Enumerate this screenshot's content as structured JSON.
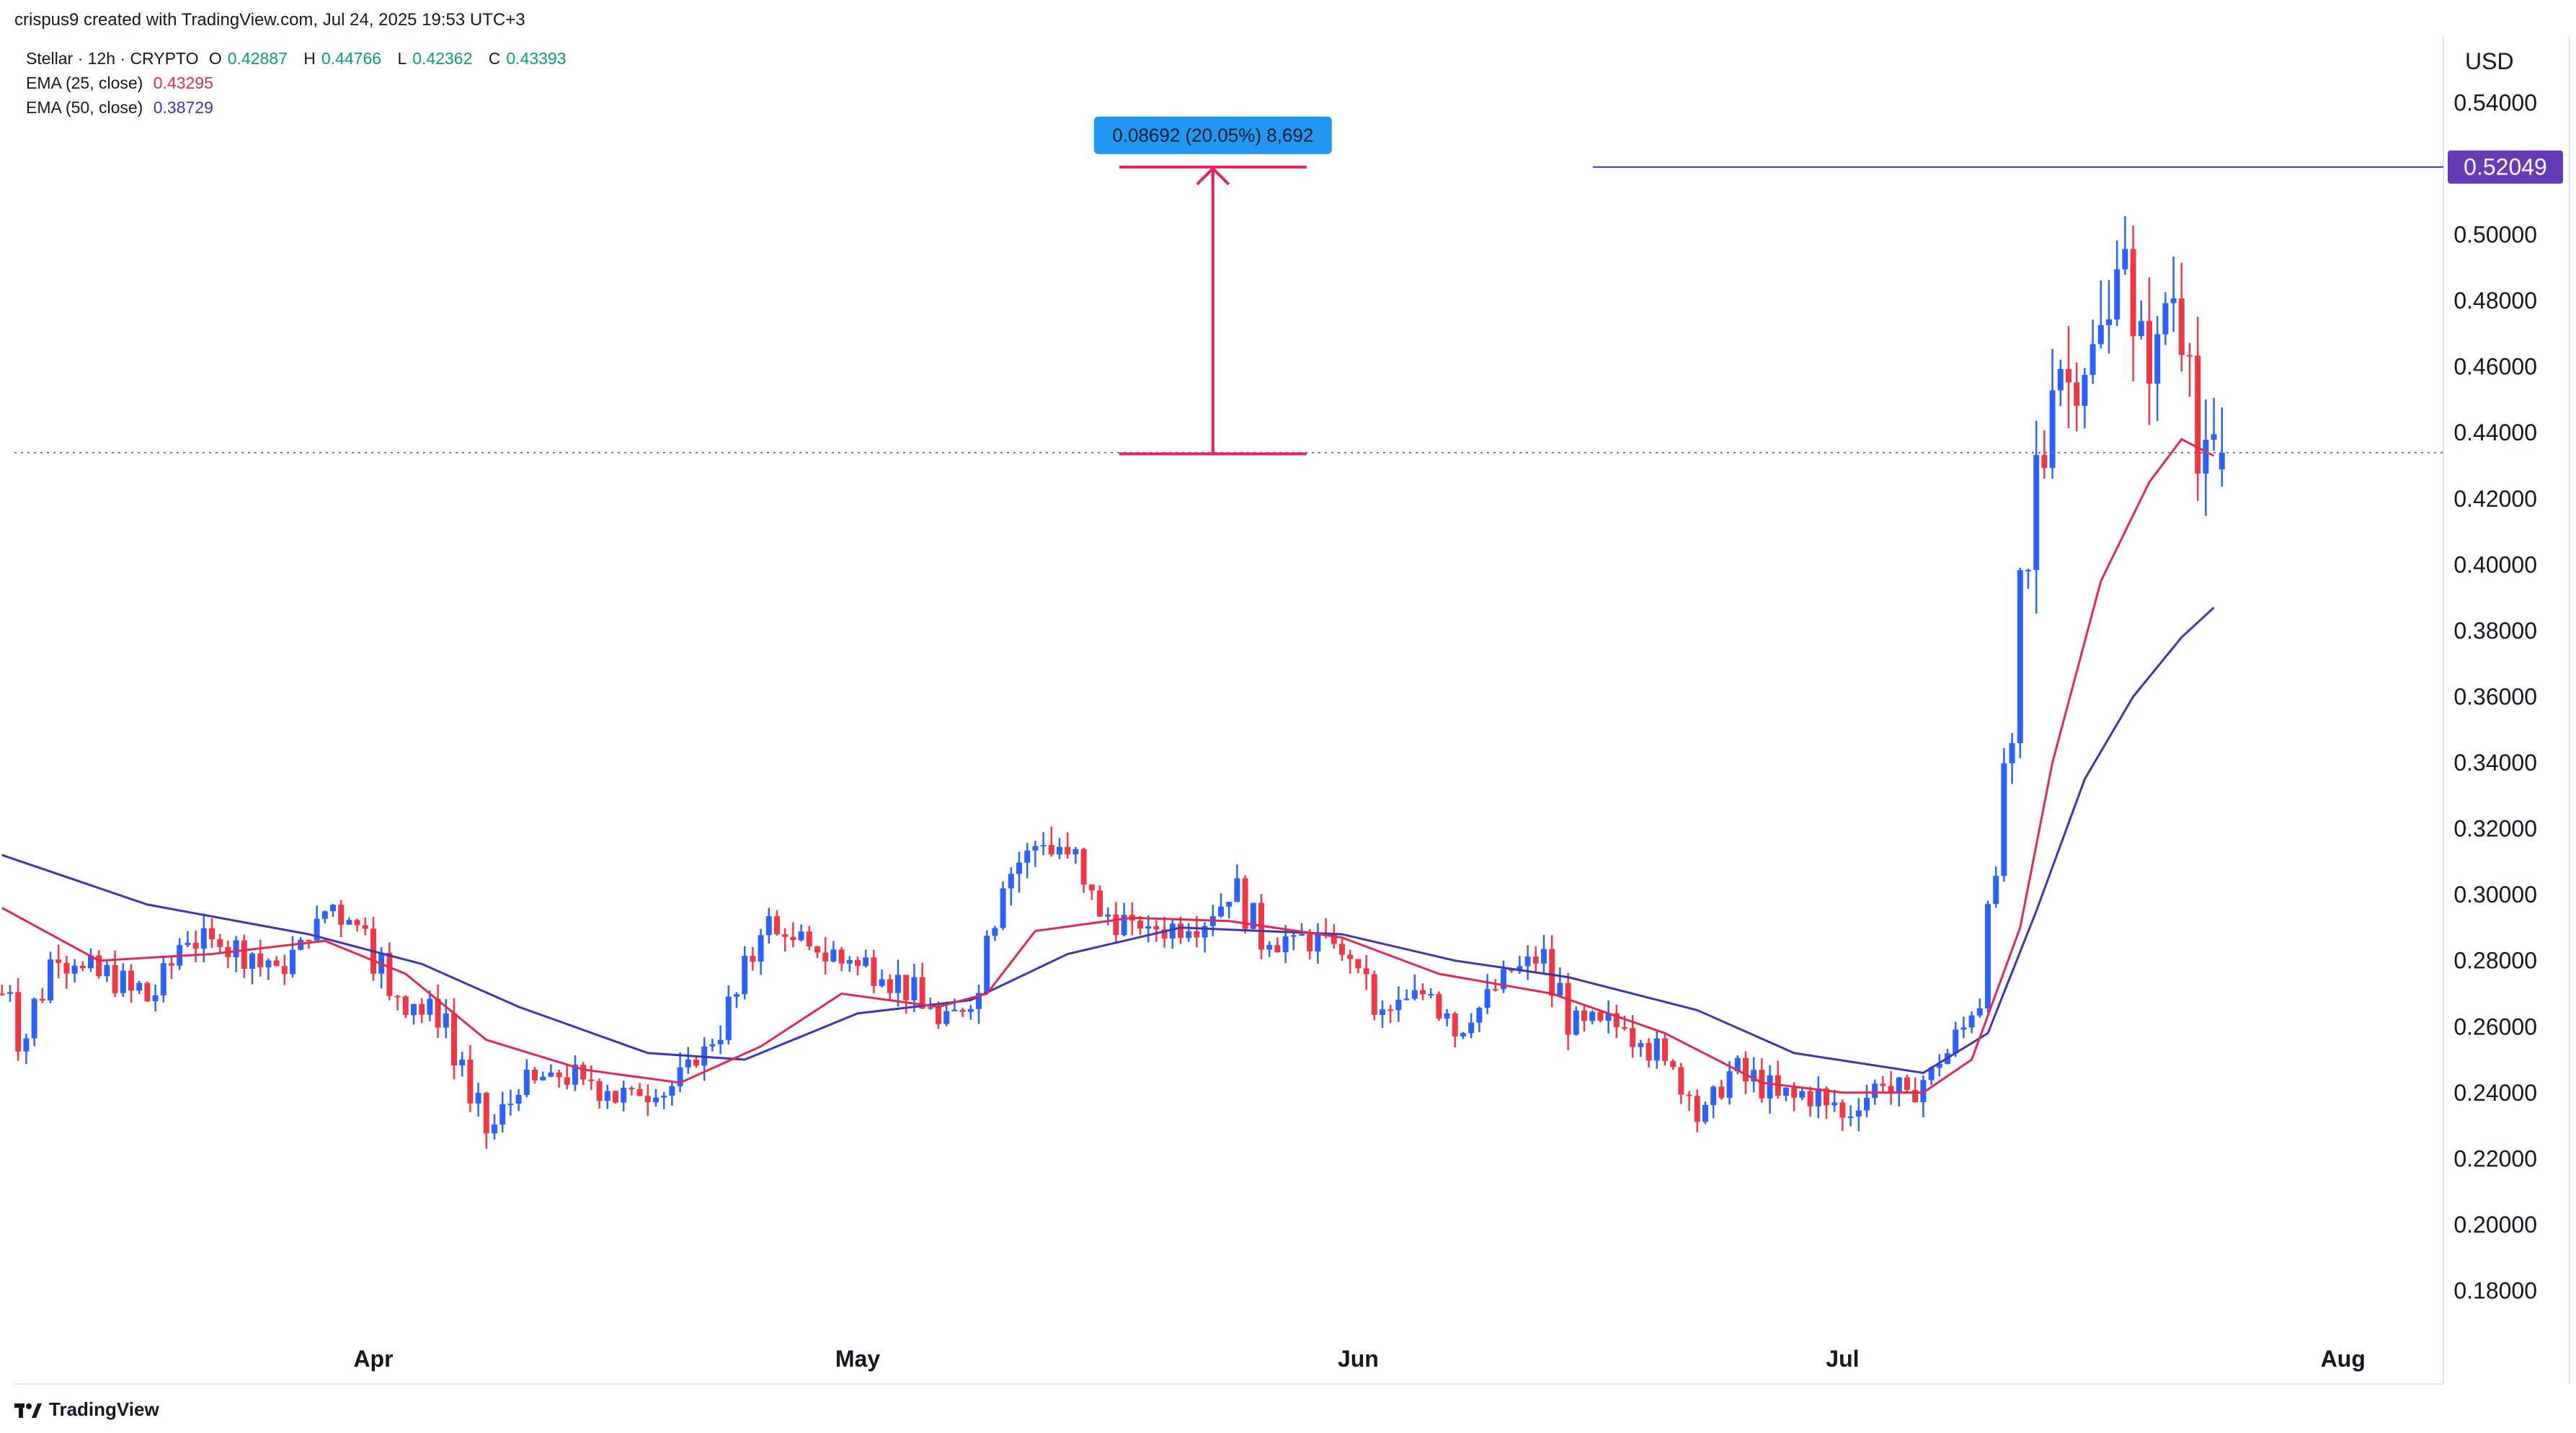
{
  "header": {
    "credit": "crispus9 created with TradingView.com, Jul 24, 2025 19:53 UTC+3"
  },
  "legend": {
    "symbol": "Stellar · 12h · CRYPTO",
    "open_label": "O",
    "open": "0.42887",
    "high_label": "H",
    "high": "0.44766",
    "low_label": "L",
    "low": "0.42362",
    "close_label": "C",
    "close": "0.43393",
    "ema25_label": "EMA (25, close)",
    "ema25": "0.43295",
    "ema50_label": "EMA (50, close)",
    "ema50": "0.38729"
  },
  "measure": {
    "label": "0.08692 (20.05%) 8,692"
  },
  "price_tag": "0.52049",
  "currency": "USD",
  "brand": "TradingView",
  "colors": {
    "up": "#2962ff",
    "down": "#f23645",
    "ema25": "#e0294f",
    "ema50": "#3d35b5",
    "measure": "#e91e63",
    "tag": "#673ab7",
    "label_bg": "#2196f3"
  },
  "chart_data": {
    "type": "candlestick",
    "title": "Stellar · 12h · CRYPTO",
    "ylabel": "USD",
    "ylim": [
      0.17,
      0.55
    ],
    "y_ticks": [
      "0.54000",
      "0.52000",
      "0.50000",
      "0.48000",
      "0.46000",
      "0.44000",
      "0.42000",
      "0.40000",
      "0.38000",
      "0.36000",
      "0.34000",
      "0.32000",
      "0.30000",
      "0.28000",
      "0.26000",
      "0.24000",
      "0.22000",
      "0.20000",
      "0.18000"
    ],
    "x_ticks": [
      {
        "label": "Apr",
        "date": "2025-04-01"
      },
      {
        "label": "May",
        "date": "2025-05-01"
      },
      {
        "label": "Jun",
        "date": "2025-06-01"
      },
      {
        "label": "Jul",
        "date": "2025-07-01"
      },
      {
        "label": "Aug",
        "date": "2025-08-01"
      }
    ],
    "close_path": [
      [
        "2025-03-09",
        0.27
      ],
      [
        "2025-03-10",
        0.255
      ],
      [
        "2025-03-12",
        0.28
      ],
      [
        "2025-03-15",
        0.275
      ],
      [
        "2025-03-18",
        0.268
      ],
      [
        "2025-03-20",
        0.285
      ],
      [
        "2025-03-22",
        0.285
      ],
      [
        "2025-03-26",
        0.276
      ],
      [
        "2025-03-29",
        0.295
      ],
      [
        "2025-03-31",
        0.29
      ],
      [
        "2025-04-02",
        0.268
      ],
      [
        "2025-04-05",
        0.262
      ],
      [
        "2025-04-07",
        0.235
      ],
      [
        "2025-04-08",
        0.228
      ],
      [
        "2025-04-10",
        0.242
      ],
      [
        "2025-04-13",
        0.244
      ],
      [
        "2025-04-16",
        0.238
      ],
      [
        "2025-04-19",
        0.24
      ],
      [
        "2025-04-22",
        0.256
      ],
      [
        "2025-04-25",
        0.29
      ],
      [
        "2025-04-28",
        0.282
      ],
      [
        "2025-05-01",
        0.278
      ],
      [
        "2025-05-04",
        0.27
      ],
      [
        "2025-05-06",
        0.26
      ],
      [
        "2025-05-08",
        0.268
      ],
      [
        "2025-05-09",
        0.29
      ],
      [
        "2025-05-10",
        0.305
      ],
      [
        "2025-05-12",
        0.315
      ],
      [
        "2025-05-14",
        0.31
      ],
      [
        "2025-05-16",
        0.292
      ],
      [
        "2025-05-19",
        0.288
      ],
      [
        "2025-05-22",
        0.29
      ],
      [
        "2025-05-24",
        0.3
      ],
      [
        "2025-05-26",
        0.285
      ],
      [
        "2025-05-30",
        0.285
      ],
      [
        "2025-06-01",
        0.275
      ],
      [
        "2025-06-02",
        0.262
      ],
      [
        "2025-06-05",
        0.27
      ],
      [
        "2025-06-07",
        0.258
      ],
      [
        "2025-06-10",
        0.275
      ],
      [
        "2025-06-12",
        0.28
      ],
      [
        "2025-06-14",
        0.26
      ],
      [
        "2025-06-17",
        0.26
      ],
      [
        "2025-06-20",
        0.248
      ],
      [
        "2025-06-22",
        0.232
      ],
      [
        "2025-06-24",
        0.246
      ],
      [
        "2025-06-27",
        0.238
      ],
      [
        "2025-06-29",
        0.238
      ],
      [
        "2025-07-01",
        0.232
      ],
      [
        "2025-07-03",
        0.242
      ],
      [
        "2025-07-05",
        0.238
      ],
      [
        "2025-07-07",
        0.25
      ],
      [
        "2025-07-09",
        0.265
      ],
      [
        "2025-07-10",
        0.3
      ],
      [
        "2025-07-11",
        0.34
      ],
      [
        "2025-07-12",
        0.395
      ],
      [
        "2025-07-13",
        0.43
      ],
      [
        "2025-07-14",
        0.46
      ],
      [
        "2025-07-15",
        0.455
      ],
      [
        "2025-07-16",
        0.462
      ],
      [
        "2025-07-17",
        0.47
      ],
      [
        "2025-07-18",
        0.498
      ],
      [
        "2025-07-19",
        0.465
      ],
      [
        "2025-07-20",
        0.462
      ],
      [
        "2025-07-21",
        0.48
      ],
      [
        "2025-07-22",
        0.47
      ],
      [
        "2025-07-23",
        0.428
      ],
      [
        "2025-07-24",
        0.434
      ]
    ],
    "ema25": [
      [
        "2025-03-09",
        0.296
      ],
      [
        "2025-03-15",
        0.28
      ],
      [
        "2025-03-22",
        0.282
      ],
      [
        "2025-03-29",
        0.286
      ],
      [
        "2025-04-03",
        0.276
      ],
      [
        "2025-04-08",
        0.256
      ],
      [
        "2025-04-14",
        0.247
      ],
      [
        "2025-04-20",
        0.243
      ],
      [
        "2025-04-25",
        0.254
      ],
      [
        "2025-04-30",
        0.27
      ],
      [
        "2025-05-06",
        0.266
      ],
      [
        "2025-05-09",
        0.27
      ],
      [
        "2025-05-12",
        0.289
      ],
      [
        "2025-05-18",
        0.293
      ],
      [
        "2025-05-24",
        0.292
      ],
      [
        "2025-05-31",
        0.287
      ],
      [
        "2025-06-06",
        0.276
      ],
      [
        "2025-06-13",
        0.27
      ],
      [
        "2025-06-20",
        0.258
      ],
      [
        "2025-06-26",
        0.243
      ],
      [
        "2025-07-01",
        0.24
      ],
      [
        "2025-07-06",
        0.24
      ],
      [
        "2025-07-09",
        0.25
      ],
      [
        "2025-07-12",
        0.29
      ],
      [
        "2025-07-14",
        0.34
      ],
      [
        "2025-07-17",
        0.395
      ],
      [
        "2025-07-20",
        0.425
      ],
      [
        "2025-07-22",
        0.438
      ],
      [
        "2025-07-24",
        0.433
      ]
    ],
    "ema50": [
      [
        "2025-03-09",
        0.312
      ],
      [
        "2025-03-18",
        0.297
      ],
      [
        "2025-03-28",
        0.288
      ],
      [
        "2025-04-04",
        0.279
      ],
      [
        "2025-04-10",
        0.266
      ],
      [
        "2025-04-18",
        0.252
      ],
      [
        "2025-04-24",
        0.25
      ],
      [
        "2025-05-01",
        0.264
      ],
      [
        "2025-05-08",
        0.268
      ],
      [
        "2025-05-14",
        0.282
      ],
      [
        "2025-05-21",
        0.29
      ],
      [
        "2025-05-31",
        0.288
      ],
      [
        "2025-06-07",
        0.28
      ],
      [
        "2025-06-14",
        0.275
      ],
      [
        "2025-06-22",
        0.265
      ],
      [
        "2025-06-28",
        0.252
      ],
      [
        "2025-07-06",
        0.246
      ],
      [
        "2025-07-10",
        0.258
      ],
      [
        "2025-07-13",
        0.295
      ],
      [
        "2025-07-16",
        0.335
      ],
      [
        "2025-07-19",
        0.36
      ],
      [
        "2025-07-22",
        0.378
      ],
      [
        "2025-07-24",
        0.387
      ]
    ],
    "resistance_level": 0.52049,
    "current_price_level": 0.43393,
    "measure_range": {
      "from": 0.43357,
      "to": 0.52049,
      "change": "0.08692",
      "percent": "20.05%",
      "points": "8,692",
      "date": "2025-05-23"
    },
    "last_candle": {
      "open": 0.42887,
      "high": 0.44766,
      "low": 0.42362,
      "close": 0.43393
    },
    "grid": false
  }
}
